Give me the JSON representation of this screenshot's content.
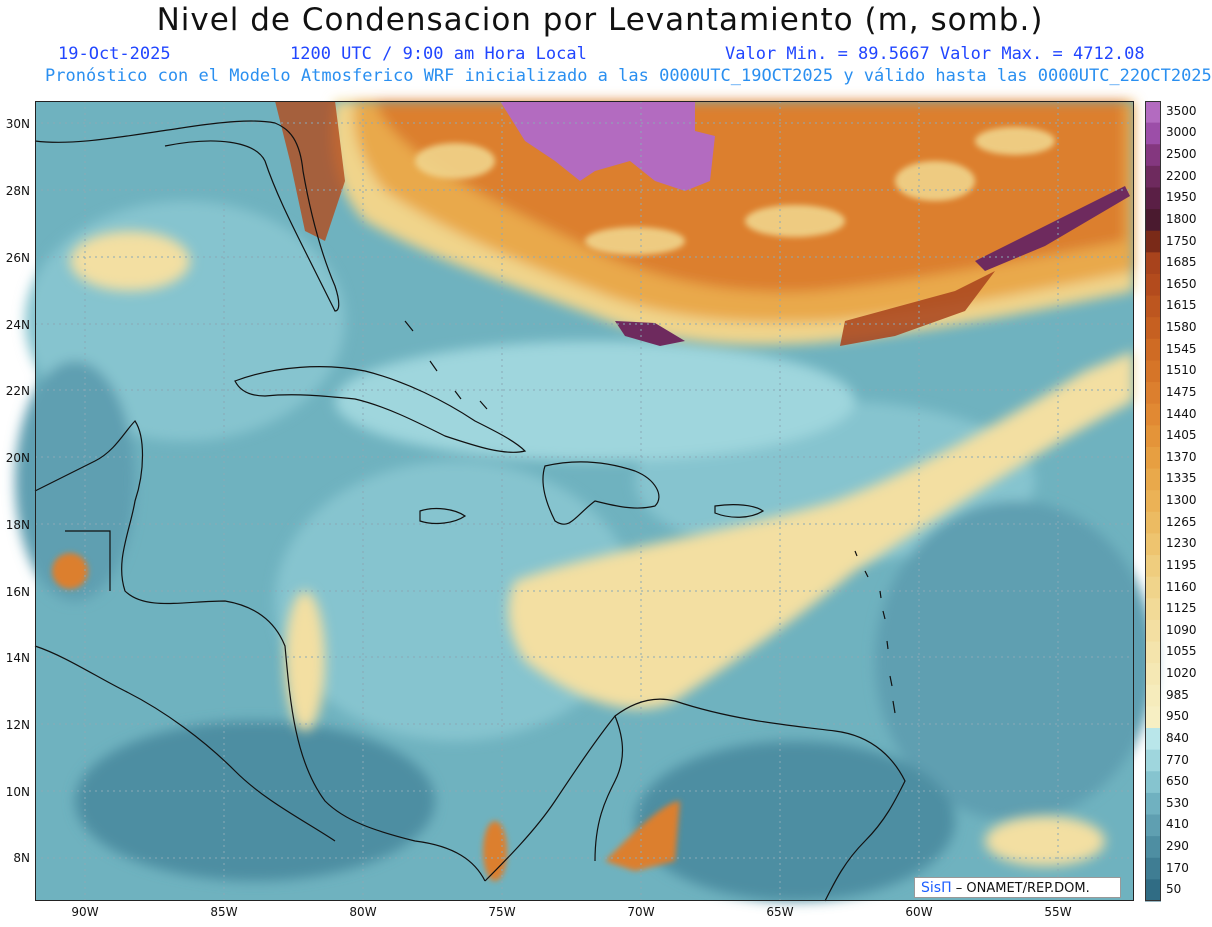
{
  "title": "Nivel de Condensacion por Levantamiento (m, somb.)",
  "date": "19-Oct-2025",
  "time": "1200 UTC / 9:00 am Hora Local",
  "value_range": "Valor Min. = 89.5667  Valor Max. = 4712.08",
  "forecast_note": "Pronóstico con el Modelo Atmosferico WRF inicializado a las 0000UTC_19OCT2025 y válido hasta las  0000UTC_22OCT2025",
  "credit": {
    "logo": "SisΠ",
    "text": "– ONAMET/REP.DOM."
  },
  "lat_labels": [
    "30N",
    "28N",
    "26N",
    "24N",
    "22N",
    "20N",
    "18N",
    "16N",
    "14N",
    "12N",
    "10N",
    "8N"
  ],
  "lon_labels": [
    "90W",
    "85W",
    "80W",
    "75W",
    "70W",
    "65W",
    "60W",
    "55W"
  ],
  "colorbar": {
    "labels": [
      "3500",
      "3000",
      "2500",
      "2200",
      "1950",
      "1800",
      "1750",
      "1685",
      "1650",
      "1615",
      "1580",
      "1545",
      "1510",
      "1475",
      "1440",
      "1405",
      "1370",
      "1335",
      "1300",
      "1265",
      "1230",
      "1195",
      "1160",
      "1125",
      "1090",
      "1055",
      "1020",
      "985",
      "950",
      "840",
      "770",
      "650",
      "530",
      "410",
      "290",
      "170",
      "50"
    ],
    "colors": [
      "#b36bc0",
      "#9c4ea8",
      "#84377f",
      "#6e2a5e",
      "#5a1f45",
      "#4a1a2f",
      "#7a2a18",
      "#a8431c",
      "#b34b1d",
      "#bd561f",
      "#c66021",
      "#cf6b24",
      "#d67528",
      "#dc7f2e",
      "#e18933",
      "#e49439",
      "#e79f41",
      "#e9a94b",
      "#ebb256",
      "#ecbb62",
      "#eec46f",
      "#efcd7e",
      "#f0d48b",
      "#f2da97",
      "#f3dfa2",
      "#f4e4ac",
      "#f5e8b4",
      "#f6ecbc",
      "#f7efc3",
      "#b9e6ea",
      "#9fd6dd",
      "#86c4cf",
      "#70b1c0",
      "#5f9fb1",
      "#4e8ea2",
      "#3f7d93",
      "#306c84"
    ]
  },
  "map_annotation": "Caribbean Sea, Gulf of Mexico, Central America, Florida, Greater Antilles"
}
